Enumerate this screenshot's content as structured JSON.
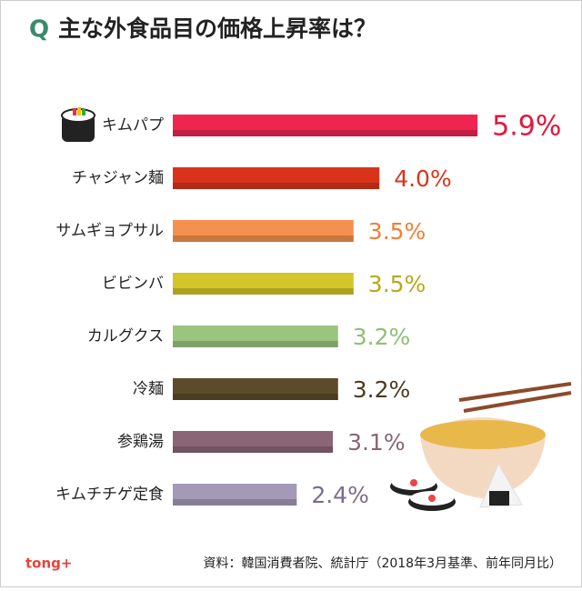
{
  "chart_data": {
    "type": "bar",
    "orientation": "horizontal",
    "title_prefix": "Q",
    "title": "主な外食品目の価格上昇率は？",
    "categories": [
      "キムパプ",
      "チャジャン麺",
      "サムギョプサル",
      "ビビンバ",
      "カルグクス",
      "冷麺",
      "参鶏湯",
      "キムチチゲ定食"
    ],
    "values": [
      5.9,
      4.0,
      3.5,
      3.5,
      3.2,
      3.2,
      3.1,
      2.4
    ],
    "value_labels": [
      "5.9%",
      "4.0%",
      "3.5%",
      "3.5%",
      "3.2%",
      "3.2%",
      "3.1%",
      "2.4%"
    ],
    "colors": [
      "#f0254f",
      "#d9341b",
      "#f5914f",
      "#d4c52a",
      "#9bc47f",
      "#5b4b2a",
      "#8a6576",
      "#a49ab8"
    ],
    "label_colors": [
      "#e3163f",
      "#d9341b",
      "#f08033",
      "#b8a81a",
      "#8fbf74",
      "#4a3c20",
      "#8a6576",
      "#7a6e8a"
    ],
    "source": "資料：韓国消費者院、統計庁（2018年3月基準、前年同月比）",
    "logo": "tong+"
  }
}
